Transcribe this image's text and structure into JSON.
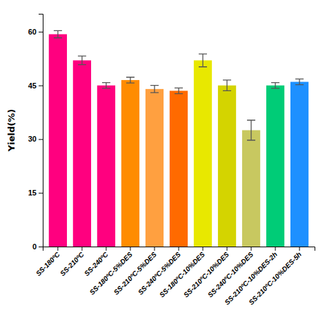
{
  "chart_data": {
    "type": "bar",
    "categories": [
      "SS-180ºC",
      "SS-210ºC",
      "SS-240ºC",
      "SS-180ºC-5%DES",
      "SS-210ºC-5%DES",
      "SS-240ºC-5%DES",
      "SS-180ºC-10%DES",
      "SS-210ºC-10%DES",
      "SS-240ºC-10%DES",
      "SS-210ºC-10%DES-2h",
      "SS-210ºC-10%DES-5h"
    ],
    "values": [
      59.3,
      52.0,
      45.0,
      46.5,
      44.0,
      43.5,
      52.0,
      45.0,
      32.5,
      45.0,
      46.0
    ],
    "errors": [
      1.0,
      1.2,
      0.8,
      0.8,
      1.0,
      0.8,
      1.8,
      1.5,
      2.8,
      0.8,
      0.8
    ],
    "colors": [
      "#FF007F",
      "#FF007F",
      "#FF007F",
      "#FF8C00",
      "#FFA040",
      "#FF6A00",
      "#E8E800",
      "#D4D400",
      "#C8C860",
      "#00CC77",
      "#1E90FF"
    ],
    "ylabel": "Yield(%)",
    "ylim": [
      0,
      65
    ],
    "yticks": [
      0,
      15,
      30,
      45,
      60
    ]
  }
}
